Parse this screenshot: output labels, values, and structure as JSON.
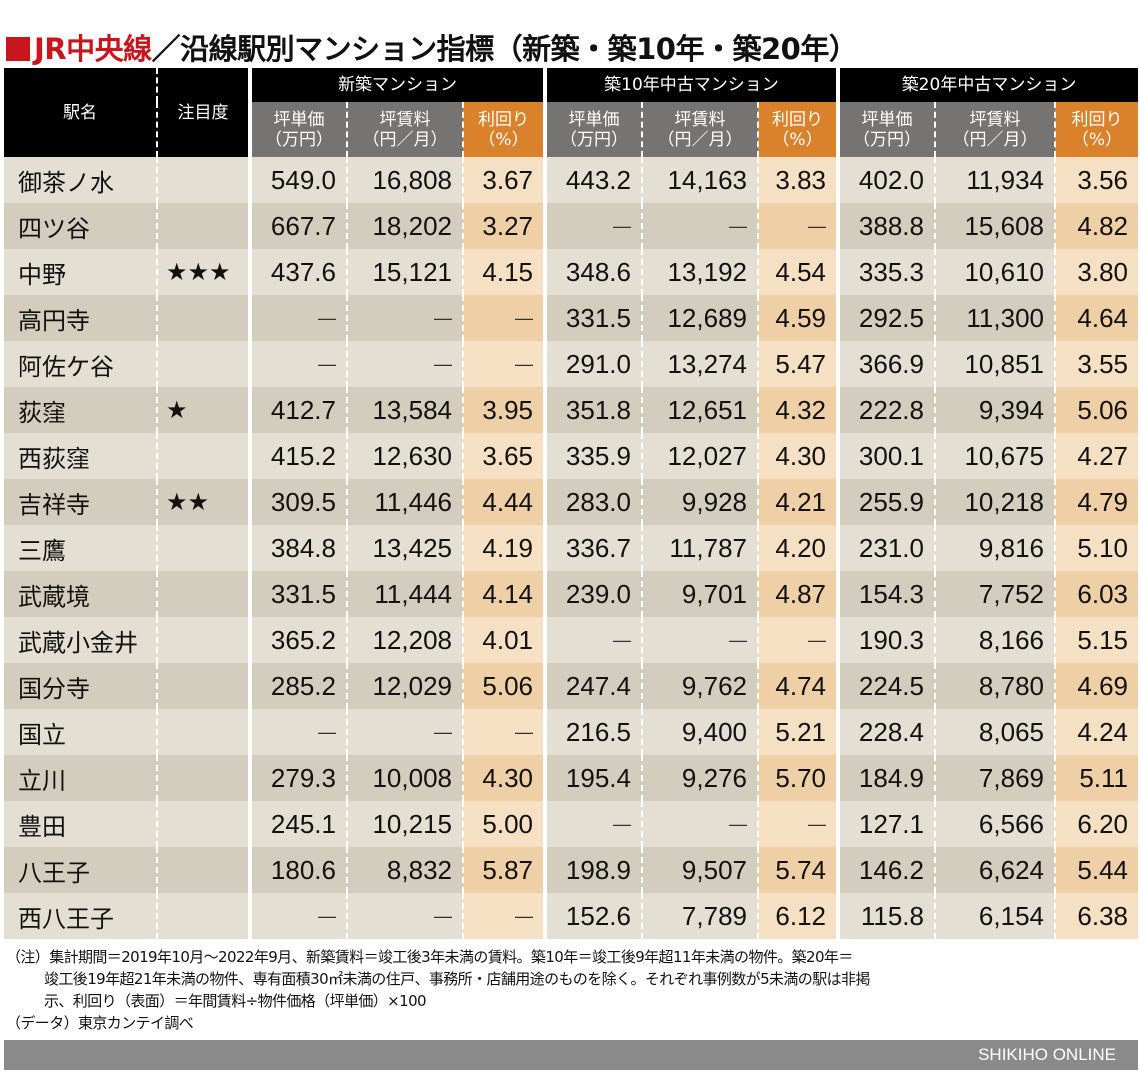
{
  "title": {
    "highlight": "JR中央線",
    "rest": "／沿線駅別マンション指標（新築・築10年・築20年）"
  },
  "colors": {
    "accent": "#c8161d",
    "header": "#000000",
    "subheader": "#767472",
    "yield_header": "#d9822b",
    "row_light": "#e3dfd3",
    "row_dark": "#d3cdbd",
    "yield_light": "#f5e0c4",
    "yield_dark": "#eecfa6"
  },
  "header": {
    "station": "駅名",
    "attention": "注目度",
    "groups": [
      "新築マンション",
      "築10年中古マンション",
      "築20年中古マンション"
    ],
    "sub": [
      {
        "l1": "坪単価",
        "l2": "（万円）"
      },
      {
        "l1": "坪賃料",
        "l2": "（円／月）"
      },
      {
        "l1": "利回り",
        "l2": "（%）"
      }
    ]
  },
  "rows": [
    {
      "station": "御茶ノ水",
      "stars": "",
      "v": [
        "549.0",
        "16,808",
        "3.67",
        "443.2",
        "14,163",
        "3.83",
        "402.0",
        "11,934",
        "3.56"
      ]
    },
    {
      "station": "四ツ谷",
      "stars": "",
      "v": [
        "667.7",
        "18,202",
        "3.27",
        "—",
        "—",
        "—",
        "388.8",
        "15,608",
        "4.82"
      ]
    },
    {
      "station": "中野",
      "stars": "★★★",
      "v": [
        "437.6",
        "15,121",
        "4.15",
        "348.6",
        "13,192",
        "4.54",
        "335.3",
        "10,610",
        "3.80"
      ]
    },
    {
      "station": "高円寺",
      "stars": "",
      "v": [
        "—",
        "—",
        "—",
        "331.5",
        "12,689",
        "4.59",
        "292.5",
        "11,300",
        "4.64"
      ]
    },
    {
      "station": "阿佐ケ谷",
      "stars": "",
      "v": [
        "—",
        "—",
        "—",
        "291.0",
        "13,274",
        "5.47",
        "366.9",
        "10,851",
        "3.55"
      ]
    },
    {
      "station": "荻窪",
      "stars": "★",
      "v": [
        "412.7",
        "13,584",
        "3.95",
        "351.8",
        "12,651",
        "4.32",
        "222.8",
        "9,394",
        "5.06"
      ]
    },
    {
      "station": "西荻窪",
      "stars": "",
      "v": [
        "415.2",
        "12,630",
        "3.65",
        "335.9",
        "12,027",
        "4.30",
        "300.1",
        "10,675",
        "4.27"
      ]
    },
    {
      "station": "吉祥寺",
      "stars": "★★",
      "v": [
        "309.5",
        "11,446",
        "4.44",
        "283.0",
        "9,928",
        "4.21",
        "255.9",
        "10,218",
        "4.79"
      ]
    },
    {
      "station": "三鷹",
      "stars": "",
      "v": [
        "384.8",
        "13,425",
        "4.19",
        "336.7",
        "11,787",
        "4.20",
        "231.0",
        "9,816",
        "5.10"
      ]
    },
    {
      "station": "武蔵境",
      "stars": "",
      "v": [
        "331.5",
        "11,444",
        "4.14",
        "239.0",
        "9,701",
        "4.87",
        "154.3",
        "7,752",
        "6.03"
      ]
    },
    {
      "station": "武蔵小金井",
      "stars": "",
      "v": [
        "365.2",
        "12,208",
        "4.01",
        "—",
        "—",
        "—",
        "190.3",
        "8,166",
        "5.15"
      ]
    },
    {
      "station": "国分寺",
      "stars": "",
      "v": [
        "285.2",
        "12,029",
        "5.06",
        "247.4",
        "9,762",
        "4.74",
        "224.5",
        "8,780",
        "4.69"
      ]
    },
    {
      "station": "国立",
      "stars": "",
      "v": [
        "—",
        "—",
        "—",
        "216.5",
        "9,400",
        "5.21",
        "228.4",
        "8,065",
        "4.24"
      ]
    },
    {
      "station": "立川",
      "stars": "",
      "v": [
        "279.3",
        "10,008",
        "4.30",
        "195.4",
        "9,276",
        "5.70",
        "184.9",
        "7,869",
        "5.11"
      ]
    },
    {
      "station": "豊田",
      "stars": "",
      "v": [
        "245.1",
        "10,215",
        "5.00",
        "—",
        "—",
        "—",
        "127.1",
        "6,566",
        "6.20"
      ]
    },
    {
      "station": "八王子",
      "stars": "",
      "v": [
        "180.6",
        "8,832",
        "5.87",
        "198.9",
        "9,507",
        "5.74",
        "146.2",
        "6,624",
        "5.44"
      ]
    },
    {
      "station": "西八王子",
      "stars": "",
      "v": [
        "—",
        "—",
        "—",
        "152.6",
        "7,789",
        "6.12",
        "115.8",
        "6,154",
        "6.38"
      ]
    }
  ],
  "notes": {
    "line1": "（注）集計期間＝2019年10月～2022年9月、新築賃料＝竣工後3年未満の賃料。築10年＝竣工後9年超11年未満の物件。築20年＝",
    "line2": "竣工後19年超21年未満の物件、専有面積30㎡未満の住戸、事務所・店舗用途のものを除く。それぞれ事例数が5未満の駅は非掲",
    "line3": "示、利回り（表面）＝年間賃料÷物件価格（坪単価）×100",
    "source": "（データ）東京カンテイ調べ"
  },
  "footer": "SHIKIHO  ONLINE"
}
